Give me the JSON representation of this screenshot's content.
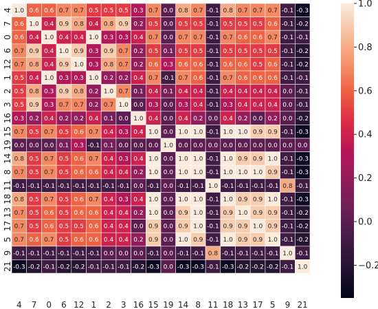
{
  "chart_data": {
    "type": "heatmap",
    "title": "",
    "xlabel": "",
    "ylabel": "",
    "labels": [
      "4",
      "7",
      "0",
      "6",
      "12",
      "1",
      "2",
      "3",
      "16",
      "15",
      "19",
      "14",
      "8",
      "11",
      "18",
      "13",
      "17",
      "5",
      "9",
      "21"
    ],
    "values": [
      [
        1.0,
        0.6,
        0.6,
        0.7,
        0.7,
        0.5,
        0.5,
        0.5,
        0.3,
        0.7,
        0.0,
        0.8,
        0.7,
        -0.1,
        0.8,
        0.7,
        0.7,
        0.7,
        -0.1,
        -0.3
      ],
      [
        0.6,
        1.0,
        0.4,
        0.9,
        0.8,
        0.4,
        0.8,
        0.9,
        0.2,
        0.5,
        -0.0,
        0.5,
        0.5,
        -0.1,
        0.5,
        0.5,
        0.5,
        0.6,
        -0.1,
        -0.2
      ],
      [
        0.6,
        0.4,
        1.0,
        0.4,
        0.4,
        1.0,
        0.3,
        0.3,
        0.4,
        0.7,
        -0.0,
        0.7,
        0.7,
        -0.1,
        0.7,
        0.6,
        0.6,
        0.7,
        -0.1,
        -0.1
      ],
      [
        0.7,
        0.9,
        0.4,
        1.0,
        0.9,
        0.3,
        0.9,
        0.7,
        0.2,
        0.5,
        0.1,
        0.5,
        0.5,
        -0.1,
        0.5,
        0.5,
        0.5,
        0.5,
        -0.1,
        -0.2
      ],
      [
        0.7,
        0.8,
        0.4,
        0.9,
        1.0,
        0.3,
        0.8,
        0.7,
        0.2,
        0.6,
        0.3,
        0.6,
        0.6,
        -0.1,
        0.6,
        0.6,
        0.5,
        0.6,
        -0.1,
        -0.2
      ],
      [
        0.5,
        0.4,
        1.0,
        0.3,
        0.3,
        1.0,
        0.2,
        0.2,
        0.4,
        0.7,
        -0.1,
        0.7,
        0.6,
        -0.1,
        0.7,
        0.6,
        0.6,
        0.6,
        -0.1,
        -0.1
      ],
      [
        0.5,
        0.8,
        0.3,
        0.9,
        0.8,
        0.2,
        1.0,
        0.7,
        0.1,
        0.4,
        0.1,
        0.4,
        0.4,
        -0.1,
        0.4,
        0.4,
        0.4,
        0.4,
        -0.0,
        -0.1
      ],
      [
        0.5,
        0.9,
        0.3,
        0.7,
        0.7,
        0.2,
        0.7,
        1.0,
        0.0,
        0.3,
        -0.0,
        0.3,
        0.4,
        -0.1,
        0.3,
        0.4,
        0.4,
        0.4,
        -0.0,
        -0.1
      ],
      [
        0.3,
        0.2,
        0.4,
        0.2,
        0.2,
        0.4,
        0.1,
        0.0,
        1.0,
        0.4,
        -0.0,
        0.4,
        0.2,
        -0.0,
        0.4,
        0.2,
        -0.0,
        0.2,
        -0.0,
        -0.2
      ],
      [
        0.7,
        0.5,
        0.7,
        0.5,
        0.6,
        0.7,
        0.4,
        0.3,
        0.4,
        1.0,
        0.0,
        1.0,
        1.0,
        -0.1,
        1.0,
        1.0,
        0.9,
        0.9,
        -0.1,
        -0.3
      ],
      [
        0.0,
        -0.0,
        -0.0,
        0.1,
        0.3,
        -0.1,
        0.1,
        -0.0,
        -0.0,
        0.0,
        1.0,
        0.0,
        0.0,
        -0.0,
        0.0,
        0.0,
        0.0,
        0.0,
        -0.0,
        -0.0
      ],
      [
        0.8,
        0.5,
        0.7,
        0.5,
        0.6,
        0.7,
        0.4,
        0.3,
        0.4,
        1.0,
        0.0,
        1.0,
        1.0,
        -0.1,
        1.0,
        0.9,
        0.9,
        1.0,
        -0.1,
        -0.3
      ],
      [
        0.7,
        0.5,
        0.7,
        0.5,
        0.6,
        0.6,
        0.4,
        0.4,
        0.2,
        1.0,
        0.0,
        1.0,
        1.0,
        -0.1,
        1.0,
        1.0,
        1.0,
        0.9,
        -0.1,
        -0.3
      ],
      [
        -0.1,
        -0.1,
        -0.1,
        -0.1,
        -0.1,
        -0.1,
        -0.1,
        -0.1,
        -0.0,
        -0.1,
        -0.0,
        -0.1,
        -0.1,
        1.0,
        -0.1,
        -0.1,
        -0.1,
        -0.1,
        0.8,
        -0.1
      ],
      [
        0.8,
        0.5,
        0.7,
        0.5,
        0.6,
        0.7,
        0.4,
        0.3,
        0.4,
        1.0,
        0.0,
        1.0,
        1.0,
        -0.1,
        1.0,
        0.9,
        0.9,
        1.0,
        -0.1,
        -0.3
      ],
      [
        0.7,
        0.5,
        0.6,
        0.5,
        0.6,
        0.6,
        0.4,
        0.4,
        0.2,
        1.0,
        0.0,
        0.9,
        1.0,
        -0.1,
        0.9,
        1.0,
        0.9,
        0.9,
        -0.1,
        -0.2
      ],
      [
        0.7,
        0.5,
        0.6,
        0.5,
        0.5,
        0.6,
        0.4,
        0.4,
        -0.0,
        0.9,
        0.0,
        0.9,
        1.0,
        -0.1,
        0.9,
        0.9,
        1.0,
        0.9,
        -0.1,
        -0.2
      ],
      [
        0.7,
        0.6,
        0.7,
        0.5,
        0.6,
        0.6,
        0.4,
        0.4,
        0.2,
        0.9,
        0.0,
        1.0,
        0.9,
        -0.1,
        1.0,
        0.9,
        0.9,
        1.0,
        -0.1,
        -0.2
      ],
      [
        -0.1,
        -0.1,
        -0.1,
        -0.1,
        -0.1,
        -0.1,
        -0.0,
        -0.0,
        -0.0,
        -0.1,
        -0.0,
        -0.1,
        -0.1,
        0.8,
        -0.1,
        -0.1,
        -0.1,
        -0.1,
        1.0,
        -0.1
      ],
      [
        -0.3,
        -0.2,
        -0.1,
        -0.2,
        -0.2,
        -0.1,
        -0.1,
        -0.1,
        -0.2,
        -0.3,
        -0.0,
        -0.3,
        -0.3,
        -0.1,
        -0.3,
        -0.2,
        -0.2,
        -0.2,
        -0.1,
        1.0
      ]
    ],
    "colorbar": {
      "min": -0.35,
      "max": 1.0,
      "ticks": [
        1.0,
        0.8,
        0.6,
        0.4,
        0.2,
        0.0,
        -0.2
      ]
    },
    "colormap": "rocket",
    "annotated": true,
    "cell_border_color": "#ffffff"
  }
}
